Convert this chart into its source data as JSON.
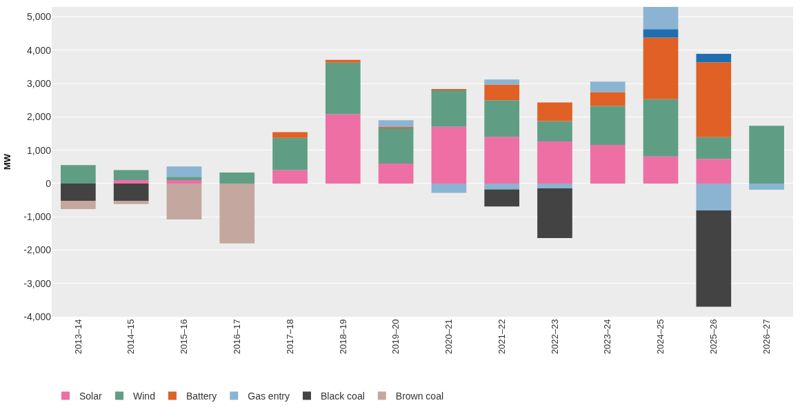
{
  "chart_data": {
    "type": "bar",
    "stacked": true,
    "ylabel": "MW",
    "categories": [
      "2013–14",
      "2014–15",
      "2015–16",
      "2016–17",
      "2017–18",
      "2018–19",
      "2019–20",
      "2020–21",
      "2021–22",
      "2022–23",
      "2023–24",
      "2024–25",
      "2025–26",
      "2026–27"
    ],
    "series": [
      {
        "name": "Solar",
        "color": "#ee6fa4",
        "values": [
          null,
          100,
          100,
          null,
          400,
          2080,
          600,
          1700,
          1400,
          1260,
          1160,
          810,
          740,
          null
        ]
      },
      {
        "name": "Wind",
        "color": "#5f9e84",
        "values": [
          550,
          300,
          100,
          330,
          970,
          1550,
          1060,
          1110,
          1100,
          610,
          1170,
          1720,
          650,
          1730
        ]
      },
      {
        "name": "Battery",
        "color": "#e06026",
        "values": [
          null,
          null,
          null,
          null,
          170,
          80,
          30,
          20,
          470,
          560,
          410,
          1850,
          2250,
          null
        ]
      },
      {
        "color": "#1f6fb0",
        "values": [
          null,
          null,
          null,
          null,
          null,
          null,
          null,
          null,
          null,
          null,
          null,
          250,
          250,
          null
        ]
      },
      {
        "name": "Gas entry",
        "color": "#8ab4d2",
        "values": [
          null,
          null,
          310,
          null,
          null,
          null,
          210,
          -280,
          -180,
          -150,
          320,
          670,
          -810,
          -190
        ]
      },
      {
        "color": "#8ab4d2",
        "values": [
          null,
          null,
          null,
          null,
          null,
          null,
          null,
          null,
          150,
          null,
          null,
          null,
          null,
          null
        ]
      },
      {
        "name": "Black coal",
        "color": "#434343",
        "values": [
          -520,
          -520,
          null,
          null,
          null,
          null,
          null,
          null,
          -510,
          -1490,
          null,
          null,
          -2890,
          null
        ]
      },
      {
        "name": "Brown coal",
        "color": "#c4a79f",
        "values": [
          -250,
          -100,
          -1080,
          -1800,
          null,
          null,
          null,
          null,
          null,
          null,
          null,
          null,
          null,
          null
        ]
      }
    ],
    "ylim": [
      -4000,
      5300
    ],
    "yticks": [
      {
        "value": -4000,
        "label": "-4,000"
      },
      {
        "value": -3000,
        "label": "-3,000"
      },
      {
        "value": -2000,
        "label": "-2,000"
      },
      {
        "value": -1000,
        "label": "-1,000"
      },
      0,
      {
        "value": 1000,
        "label": "1,000"
      },
      {
        "value": 2000,
        "label": "2,000"
      },
      {
        "value": 3000,
        "label": "3,000"
      },
      {
        "value": 4000,
        "label": "4,000"
      },
      {
        "value": 5000,
        "label": "5,000"
      }
    ],
    "grid": "y",
    "legend": "bottom left"
  }
}
